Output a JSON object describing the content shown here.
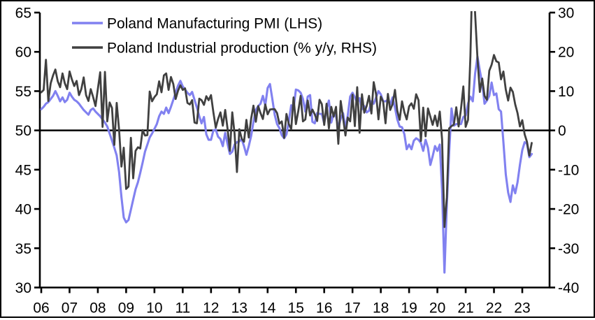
{
  "chart_data": {
    "type": "line",
    "title": "",
    "start": "2006-01",
    "frequency": "monthly",
    "grid": false,
    "legend_position": "top-left-inside",
    "background_color": "#ffffff",
    "axis_color": "#000000",
    "baseline": {
      "lhs_value": 50,
      "rhs_value": 0
    },
    "x_axis": {
      "tick_labels": [
        "06",
        "07",
        "08",
        "09",
        "10",
        "11",
        "12",
        "13",
        "14",
        "15",
        "16",
        "17",
        "18",
        "19",
        "20",
        "21",
        "22",
        "23"
      ]
    },
    "left_axis": {
      "min": 30,
      "max": 65,
      "ticks": [
        65,
        60,
        55,
        50,
        45,
        40,
        35,
        30
      ]
    },
    "right_axis": {
      "min": -40,
      "max": 30,
      "ticks": [
        30,
        20,
        10,
        0,
        -10,
        -20,
        -30,
        -40
      ]
    },
    "series": [
      {
        "name": "Poland Manufacturing PMI (LHS)",
        "axis": "left",
        "color": "#8181f0",
        "values": [
          52.7,
          53,
          53.4,
          53.6,
          54,
          54.4,
          55,
          54.4,
          53.7,
          54.2,
          53.6,
          53.9,
          54.8,
          54.3,
          53.9,
          53.7,
          53.4,
          53,
          52.6,
          52.3,
          52,
          52.6,
          52.8,
          52.4,
          52.1,
          51.8,
          51.4,
          51,
          50.5,
          49.6,
          48.7,
          47.8,
          46.8,
          44.7,
          41.5,
          38.9,
          38.3,
          38.6,
          39.9,
          41.2,
          42.5,
          43.4,
          44.6,
          45.9,
          47.3,
          48.2,
          49.1,
          49.6,
          50.2,
          50.8,
          51.8,
          52.4,
          52.1,
          52.9,
          52.2,
          53,
          53.9,
          54.8,
          55.7,
          56.3,
          55.6,
          55.2,
          54.8,
          54.5,
          54.9,
          53.9,
          52.9,
          51.8,
          50.9,
          51.7,
          49.5,
          48.8,
          48.8,
          50,
          50.1,
          49.2,
          48.9,
          48,
          49.7,
          48.3,
          47,
          47.3,
          48.2,
          48.5,
          48.6,
          48.9,
          48,
          46.9,
          48,
          49.3,
          51.1,
          52.6,
          53.1,
          53.4,
          54.4,
          53.2,
          55.4,
          55.9,
          54,
          52,
          50.8,
          50.3,
          49.4,
          49,
          49.5,
          51.2,
          53.2,
          52.8,
          55.2,
          55.1,
          54.8,
          54,
          52.4,
          54.3,
          54.5,
          51.1,
          50.9,
          52.2,
          52.1,
          52.1,
          50.9,
          52.8,
          53.8,
          51,
          52.1,
          51.8,
          50.3,
          51.5,
          52.2,
          50.2,
          51.9,
          54.3,
          54.8,
          54.2,
          53.5,
          54.1,
          52.7,
          53.1,
          52.3,
          52.5,
          53.7,
          53.4,
          54.2,
          55,
          54.6,
          53.7,
          53.7,
          53.9,
          53.3,
          54.2,
          52.9,
          51.4,
          50.5,
          50.4,
          49.5,
          47.6,
          48.2,
          47.6,
          48.7,
          49,
          48.8,
          48.4,
          47.4,
          48.8,
          47.8,
          45.6,
          46.7,
          48,
          47.4,
          48.2,
          42.4,
          31.9,
          40.6,
          47.2,
          52.8,
          50.6,
          50.8,
          50.8,
          50.8,
          51.7,
          51.9,
          53.4,
          54.3,
          53.7,
          57.2,
          59.4,
          57.6,
          56,
          53.4,
          53.8,
          54.4,
          56.1,
          54.5,
          54.7,
          52.7,
          52.4,
          48.5,
          44.4,
          42.1,
          40.9,
          43,
          42,
          43.4,
          45.6,
          47.5,
          48.5,
          48.3,
          46.6,
          47
        ]
      },
      {
        "name": "Poland Industrial production (% y/y, RHS)",
        "axis": "right",
        "color": "#404040",
        "values": [
          9.7,
          10.3,
          18,
          7.5,
          12,
          14,
          15.5,
          12.5,
          11,
          14.5,
          12,
          10.5,
          15,
          13,
          11.3,
          12.6,
          9,
          10.5,
          13.5,
          9,
          7.5,
          10.5,
          8.5,
          6.2,
          10.5,
          14.8,
          0.9,
          14.9,
          2.3,
          7.1,
          5.7,
          -3.7,
          7,
          0.2,
          -9.2,
          -4.4,
          -14.9,
          -14.3,
          -1.9,
          -12.2,
          -5.2,
          -4.3,
          -4.6,
          0.1,
          -1.3,
          -1.2,
          9.9,
          7.4,
          8.5,
          9.2,
          12.5,
          9.7,
          14,
          14.5,
          10.3,
          13.6,
          11.8,
          8,
          10.1,
          11.5,
          10.3,
          10.7,
          7,
          6.6,
          7.7,
          2,
          1.8,
          8.1,
          7.7,
          6.5,
          8.7,
          7.7,
          9,
          4.6,
          0.7,
          2.9,
          4.6,
          1.2,
          5.2,
          0.5,
          -5.2,
          4.6,
          -0.8,
          -10.6,
          0.3,
          -2.1,
          -2.9,
          2.7,
          -1.8,
          3,
          6.3,
          2.2,
          6.2,
          4.4,
          2.9,
          6.6,
          4.1,
          5.3,
          5.4,
          5.4,
          4.4,
          1.7,
          2.3,
          -1.9,
          4.2,
          1.6,
          0.3,
          8.4,
          1.6,
          4.9,
          8.8,
          2.3,
          2.8,
          7.6,
          3.8,
          5.3,
          4.1,
          2.4,
          7.8,
          6.7,
          1.4,
          6.8,
          0.5,
          6,
          3.5,
          6,
          -3.4,
          7.5,
          3.2,
          -1.3,
          3.3,
          2.3,
          9.1,
          1.1,
          11,
          -0.6,
          9.2,
          4.5,
          6.2,
          8.8,
          4.3,
          12.3,
          9.2,
          2.8,
          8.6,
          7.3,
          1.8,
          9.3,
          5.2,
          6.7,
          10.3,
          5,
          2.7,
          7.4,
          4.6,
          2.8,
          6.1,
          6.9,
          5.5,
          9.2,
          7.7,
          -2.7,
          5.8,
          -1.5,
          5.6,
          3.5,
          1.4,
          3.8,
          1.1,
          4.8,
          -2.3,
          -24.6,
          -17,
          0.5,
          1.1,
          1.5,
          5.9,
          1,
          5.4,
          11.2,
          0.9,
          2.7,
          18.9,
          44.5,
          29.8,
          18.4,
          9.8,
          13.2,
          8.8,
          7.8,
          15.2,
          16.7,
          19.2,
          17.6,
          17.3,
          13,
          15,
          10.4,
          7.6,
          10.9,
          9.8,
          6.6,
          4.4,
          1,
          2.6,
          -1,
          -2.9,
          -6.4,
          -3.2
        ]
      }
    ]
  }
}
